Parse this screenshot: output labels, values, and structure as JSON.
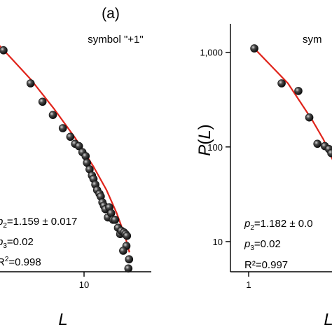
{
  "figure": {
    "panel_a_label": "(a)"
  },
  "chart_data": [
    {
      "type": "scatter",
      "panel": "a",
      "symbol_label": "symbol \"+1\"",
      "xlabel": "L",
      "ylabel": "",
      "xscale": "log",
      "yscale": "log",
      "x_ticks": [
        10
      ],
      "x_tick_labels": [
        "10"
      ],
      "xlim": [
        1.65,
        33
      ],
      "ylim": [
        4.8,
        2000
      ],
      "grid": false,
      "marker_color": "#2b2b2b",
      "fit_color": "#e0241b",
      "stats": {
        "p2": "=1.159 ± 0.017",
        "p3": "=0.02",
        "r2": "=0.998"
      },
      "points": [
        {
          "x": 1.65,
          "y": 1050
        },
        {
          "x": 3.0,
          "y": 470
        },
        {
          "x": 3.9,
          "y": 300
        },
        {
          "x": 4.9,
          "y": 218
        },
        {
          "x": 6.1,
          "y": 158
        },
        {
          "x": 7.2,
          "y": 128
        },
        {
          "x": 8.0,
          "y": 108
        },
        {
          "x": 8.7,
          "y": 102
        },
        {
          "x": 9.4,
          "y": 88
        },
        {
          "x": 10.1,
          "y": 80
        },
        {
          "x": 10.4,
          "y": 68
        },
        {
          "x": 11.0,
          "y": 58
        },
        {
          "x": 11.6,
          "y": 50
        },
        {
          "x": 12.0,
          "y": 46
        },
        {
          "x": 12.5,
          "y": 40
        },
        {
          "x": 13.0,
          "y": 35
        },
        {
          "x": 13.7,
          "y": 32
        },
        {
          "x": 14.1,
          "y": 30
        },
        {
          "x": 14.6,
          "y": 26
        },
        {
          "x": 15.1,
          "y": 24
        },
        {
          "x": 15.6,
          "y": 22
        },
        {
          "x": 16.5,
          "y": 18
        },
        {
          "x": 17.0,
          "y": 23
        },
        {
          "x": 17.7,
          "y": 20
        },
        {
          "x": 18.5,
          "y": 17
        },
        {
          "x": 19.3,
          "y": 17
        },
        {
          "x": 20.6,
          "y": 14
        },
        {
          "x": 21.6,
          "y": 12
        },
        {
          "x": 22.2,
          "y": 13
        },
        {
          "x": 23.5,
          "y": 12.5
        },
        {
          "x": 24.3,
          "y": 12
        },
        {
          "x": 25.1,
          "y": 11.5
        },
        {
          "x": 24.8,
          "y": 9
        },
        {
          "x": 23.1,
          "y": 8
        },
        {
          "x": 26.3,
          "y": 6.5
        },
        {
          "x": 25.9,
          "y": 5.2
        }
      ],
      "fit": [
        {
          "x": 1.0,
          "y": 1900
        },
        {
          "x": 1.65,
          "y": 1060
        },
        {
          "x": 3.0,
          "y": 520
        },
        {
          "x": 5.0,
          "y": 255
        },
        {
          "x": 8.0,
          "y": 125
        },
        {
          "x": 12.0,
          "y": 62
        },
        {
          "x": 16.0,
          "y": 35
        },
        {
          "x": 20.0,
          "y": 20
        },
        {
          "x": 24.0,
          "y": 11.5
        },
        {
          "x": 26.5,
          "y": 7.7
        }
      ]
    },
    {
      "type": "scatter",
      "panel": "b",
      "symbol_label": "sym",
      "xlabel": "L",
      "ylabel": "P(L)",
      "xscale": "log",
      "yscale": "log",
      "x_ticks": [
        1
      ],
      "x_tick_labels": [
        "1"
      ],
      "y_ticks": [
        10,
        100,
        1000
      ],
      "y_tick_labels": [
        "10",
        "100",
        "1,000"
      ],
      "xlim": [
        0.75,
        2.55
      ],
      "ylim": [
        4.8,
        2000
      ],
      "grid": false,
      "marker_color": "#2b2b2b",
      "fit_color": "#e0241b",
      "stats": {
        "p2": "=1.182 ± 0.0",
        "p3": "=0.02",
        "r2": "R²=0.997"
      },
      "points": [
        {
          "x": 1.0,
          "y": 1100
        },
        {
          "x": 1.39,
          "y": 470
        },
        {
          "x": 1.7,
          "y": 390
        },
        {
          "x": 1.94,
          "y": 205
        },
        {
          "x": 2.14,
          "y": 108
        },
        {
          "x": 2.34,
          "y": 102
        },
        {
          "x": 2.46,
          "y": 95
        },
        {
          "x": 2.53,
          "y": 86
        }
      ],
      "fit": [
        {
          "x": 1.0,
          "y": 1100
        },
        {
          "x": 1.5,
          "y": 470
        },
        {
          "x": 2.0,
          "y": 195
        },
        {
          "x": 2.3,
          "y": 120
        },
        {
          "x": 2.58,
          "y": 72
        }
      ]
    }
  ]
}
